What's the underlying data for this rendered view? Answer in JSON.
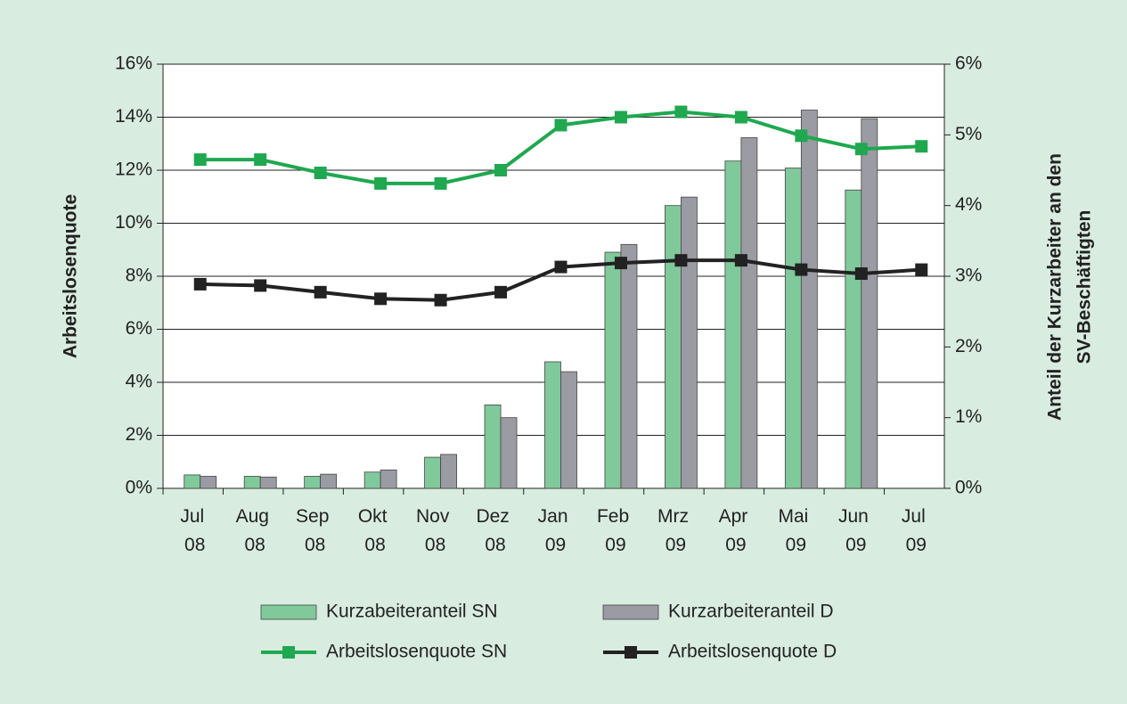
{
  "chart_data": {
    "type": "bar",
    "categories": [
      "Jul 08",
      "Aug 08",
      "Sep 08",
      "Okt 08",
      "Nov 08",
      "Dez 08",
      "Jan 09",
      "Feb 09",
      "Mrz 09",
      "Apr 09",
      "Mai 09",
      "Jun 09",
      "Jul 09"
    ],
    "y_label": "Arbeitslosenquote",
    "y2_label": [
      "Anteil der Kurzarbeiter an den",
      "SV-Beschäftigten"
    ],
    "ylim": [
      0,
      16
    ],
    "yticks": [
      {
        "value": 0,
        "label": "0%"
      },
      {
        "value": 2,
        "label": "2%"
      },
      {
        "value": 4,
        "label": "4%"
      },
      {
        "value": 6,
        "label": "6%"
      },
      {
        "value": 8,
        "label": "8%"
      },
      {
        "value": 10,
        "label": "10%"
      },
      {
        "value": 12,
        "label": "12%"
      },
      {
        "value": 14,
        "label": "14%"
      },
      {
        "value": 16,
        "label": "16%"
      }
    ],
    "y2lim": [
      0,
      6
    ],
    "y2ticks": [
      {
        "value": 0,
        "label": "0%"
      },
      {
        "value": 1,
        "label": "1%"
      },
      {
        "value": 2,
        "label": "2%"
      },
      {
        "value": 3,
        "label": "3%"
      },
      {
        "value": 4,
        "label": "4%"
      },
      {
        "value": 5,
        "label": "5%"
      },
      {
        "value": 6,
        "label": "6%"
      }
    ],
    "grid": true,
    "legend": "bottom",
    "series": [
      {
        "name": "Kurzabeiteranteil SN",
        "type": "bar",
        "axis": "y2",
        "color": "#80c99b",
        "values": [
          0.19,
          0.17,
          0.17,
          0.23,
          0.44,
          1.18,
          1.79,
          3.34,
          4.0,
          4.63,
          4.53,
          4.22,
          null
        ]
      },
      {
        "name": "Kurzarbeiteranteil D",
        "type": "bar",
        "axis": "y2",
        "color": "#9b9ba4",
        "values": [
          0.17,
          0.16,
          0.2,
          0.26,
          0.48,
          1.0,
          1.65,
          3.45,
          4.12,
          4.96,
          5.35,
          5.23,
          null
        ]
      },
      {
        "name": "Arbeitslosenquote SN",
        "type": "line",
        "color": "#1fa84f",
        "values": [
          12.4,
          12.4,
          11.9,
          11.5,
          11.5,
          12.0,
          13.7,
          14.0,
          14.2,
          14.0,
          13.3,
          12.8,
          12.9
        ]
      },
      {
        "name": "Arbeitslosenquote D",
        "type": "line",
        "color": "#222222",
        "values": [
          7.7,
          7.65,
          7.4,
          7.15,
          7.1,
          7.4,
          8.35,
          8.5,
          8.6,
          8.6,
          8.25,
          8.1,
          8.25
        ]
      }
    ]
  }
}
